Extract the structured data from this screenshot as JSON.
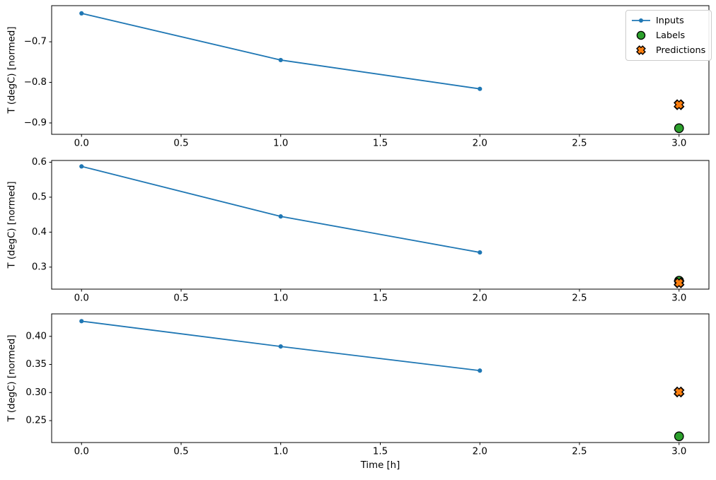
{
  "figure": {
    "background": "#ffffff"
  },
  "colors": {
    "inputs": "#1f77b4",
    "labels": "#2ca02c",
    "predictions": "#ff7f0e",
    "marker_edge": "#000000",
    "axis": "#000000",
    "text": "#000000",
    "legend_border": "#cccccc"
  },
  "legend": {
    "position": "upper right",
    "items": [
      {
        "label": "Inputs",
        "marker": "line-dot"
      },
      {
        "label": "Labels",
        "marker": "circle"
      },
      {
        "label": "Predictions",
        "marker": "x-cross"
      }
    ]
  },
  "chart_data": [
    {
      "type": "line",
      "subplot": 1,
      "title": "",
      "xlabel": "",
      "ylabel": "T (degC) [normed]",
      "xlim": [
        -0.15,
        3.15
      ],
      "ylim": [
        -0.928,
        -0.611
      ],
      "grid": false,
      "xticks": [
        0.0,
        0.5,
        1.0,
        1.5,
        2.0,
        2.5,
        3.0
      ],
      "xtick_labels": [
        "0.0",
        "0.5",
        "1.0",
        "1.5",
        "2.0",
        "2.5",
        "3.0"
      ],
      "yticks": [
        -0.9,
        -0.8,
        -0.7
      ],
      "ytick_labels": [
        "−0.9",
        "−0.8",
        "−0.7"
      ],
      "series": [
        {
          "name": "Inputs",
          "type": "line",
          "x": [
            0.0,
            1.0,
            2.0
          ],
          "y": [
            -0.63,
            -0.745,
            -0.816
          ]
        },
        {
          "name": "Labels",
          "type": "scatter",
          "x": [
            3.0
          ],
          "y": [
            -0.913
          ]
        },
        {
          "name": "Predictions",
          "type": "scatter",
          "x": [
            3.0
          ],
          "y": [
            -0.855
          ]
        }
      ],
      "legend": true
    },
    {
      "type": "line",
      "subplot": 2,
      "title": "",
      "xlabel": "",
      "ylabel": "T (degC) [normed]",
      "xlim": [
        -0.15,
        3.15
      ],
      "ylim": [
        0.237,
        0.605
      ],
      "grid": false,
      "xticks": [
        0.0,
        0.5,
        1.0,
        1.5,
        2.0,
        2.5,
        3.0
      ],
      "xtick_labels": [
        "0.0",
        "0.5",
        "1.0",
        "1.5",
        "2.0",
        "2.5",
        "3.0"
      ],
      "yticks": [
        0.3,
        0.4,
        0.5,
        0.6
      ],
      "ytick_labels": [
        "0.3",
        "0.4",
        "0.5",
        "0.6"
      ],
      "series": [
        {
          "name": "Inputs",
          "type": "line",
          "x": [
            0.0,
            1.0,
            2.0
          ],
          "y": [
            0.588,
            0.445,
            0.342
          ]
        },
        {
          "name": "Labels",
          "type": "scatter",
          "x": [
            3.0
          ],
          "y": [
            0.261
          ]
        },
        {
          "name": "Predictions",
          "type": "scatter",
          "x": [
            3.0
          ],
          "y": [
            0.255
          ]
        }
      ],
      "legend": false
    },
    {
      "type": "line",
      "subplot": 3,
      "title": "",
      "xlabel": "Time [h]",
      "ylabel": "T (degC) [normed]",
      "xlim": [
        -0.15,
        3.15
      ],
      "ylim": [
        0.211,
        0.44
      ],
      "grid": false,
      "xticks": [
        0.0,
        0.5,
        1.0,
        1.5,
        2.0,
        2.5,
        3.0
      ],
      "xtick_labels": [
        "0.0",
        "0.5",
        "1.0",
        "1.5",
        "2.0",
        "2.5",
        "3.0"
      ],
      "yticks": [
        0.25,
        0.3,
        0.35,
        0.4
      ],
      "ytick_labels": [
        "0.25",
        "0.30",
        "0.35",
        "0.40"
      ],
      "series": [
        {
          "name": "Inputs",
          "type": "line",
          "x": [
            0.0,
            1.0,
            2.0
          ],
          "y": [
            0.427,
            0.382,
            0.339
          ]
        },
        {
          "name": "Labels",
          "type": "scatter",
          "x": [
            3.0
          ],
          "y": [
            0.222
          ]
        },
        {
          "name": "Predictions",
          "type": "scatter",
          "x": [
            3.0
          ],
          "y": [
            0.301
          ]
        }
      ],
      "legend": false
    }
  ]
}
